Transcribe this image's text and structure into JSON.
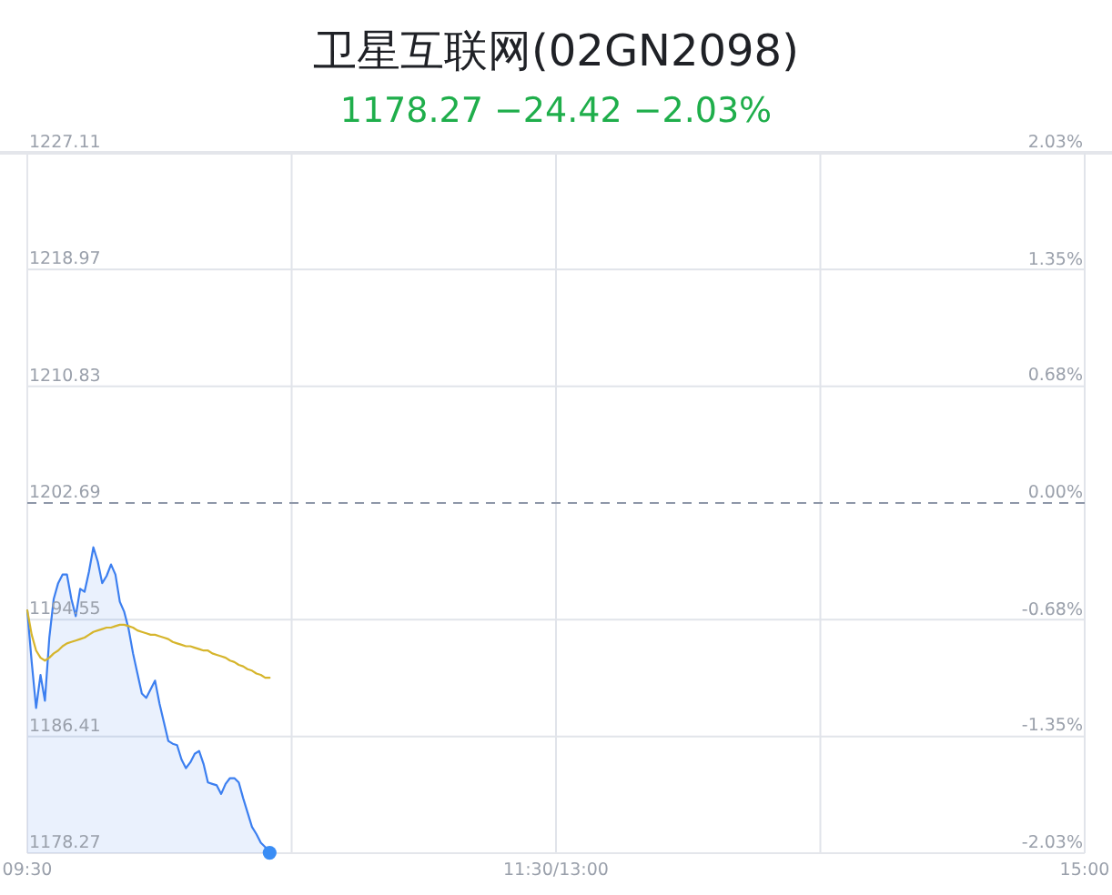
{
  "chart_data": {
    "type": "area",
    "title": "卫星互联网(02GN2098)",
    "subtitle": "1178.27 −24.42 −2.03%",
    "categories": [
      "09:30",
      null,
      null,
      null,
      null,
      null,
      null,
      null,
      null,
      null,
      null,
      null,
      null,
      null,
      null,
      null,
      null,
      null,
      null,
      null,
      null,
      null,
      null,
      null,
      null,
      null,
      null,
      null,
      null,
      null,
      null,
      null,
      null,
      null,
      null,
      null,
      null,
      null,
      null,
      null,
      null,
      null,
      null,
      null,
      null,
      null,
      null,
      null,
      null,
      null,
      null,
      null,
      null,
      null,
      null,
      null,
      null,
      null,
      null,
      null,
      null,
      null,
      null,
      null,
      null,
      null,
      null,
      null,
      null,
      null,
      null,
      null,
      null,
      null,
      null,
      null,
      null,
      null,
      null,
      null,
      null,
      null,
      null,
      null,
      null,
      null,
      null,
      null,
      null,
      null,
      null,
      null,
      null,
      null,
      null,
      null,
      null,
      null,
      null,
      null,
      null,
      null,
      null,
      null,
      null,
      null,
      null,
      null,
      null,
      null,
      null,
      null,
      null,
      null,
      null,
      null,
      null,
      null,
      null,
      null,
      "11:30/13:00",
      null,
      null,
      null,
      null,
      null,
      null,
      null,
      null,
      null,
      null,
      null,
      null,
      null,
      null,
      null,
      null,
      null,
      null,
      null,
      null,
      null,
      null,
      null,
      null,
      null,
      null,
      null,
      null,
      null,
      null,
      null,
      null,
      null,
      null,
      null,
      null,
      null,
      null,
      null,
      null,
      null,
      null,
      null,
      null,
      null,
      null,
      null,
      null,
      null,
      null,
      null,
      null,
      null,
      null,
      null,
      null,
      null,
      null,
      null,
      null,
      null,
      null,
      null,
      null,
      null,
      null,
      null,
      null,
      null,
      null,
      null,
      null,
      null,
      null,
      null,
      null,
      null,
      null,
      null,
      null,
      null,
      null,
      null,
      null,
      null,
      null,
      null,
      null,
      null,
      null,
      null,
      null,
      null,
      null,
      null,
      null,
      null,
      null,
      null,
      null,
      null,
      null,
      null,
      null,
      null,
      null,
      null,
      null,
      null,
      null,
      null,
      null,
      null,
      null,
      null,
      null,
      null,
      null,
      null,
      "15:00"
    ],
    "ylim": [
      1178.27,
      1227.11
    ],
    "yticks": [
      1178.27,
      1186.41,
      1194.55,
      1202.69,
      1210.83,
      1218.97,
      1227.11
    ],
    "y2lim": [
      -2.03,
      2.03
    ],
    "y2ticks": [
      {
        "value": -2.03,
        "label": "-2.03%"
      },
      {
        "value": -1.35,
        "label": "-1.35%"
      },
      {
        "value": -0.68,
        "label": "-0.68%"
      },
      {
        "value": 0,
        "label": "0.00%"
      },
      {
        "value": 0.68,
        "label": "0.68%"
      },
      {
        "value": 1.35,
        "label": "1.35%"
      },
      {
        "value": 2.03,
        "label": "2.03%"
      }
    ],
    "grid": true,
    "ref_lines": [
      {
        "axis": "y",
        "value": 1202.69,
        "line_style": "dashed",
        "color": "#8e97a8"
      }
    ],
    "series": [
      {
        "color": "#3c7ff0",
        "values": [
          1195.2,
          1191.6,
          1188.4,
          1190.7,
          1188.9,
          1193.3,
          1196.0,
          1197.1,
          1197.7,
          1197.7,
          1196.0,
          1194.8,
          1196.7,
          1196.5,
          1197.9,
          1199.6,
          1198.6,
          1197.1,
          1197.6,
          1198.4,
          1197.7,
          1195.8,
          1195.1,
          1193.9,
          1192.2,
          1190.8,
          1189.4,
          1189.1,
          1189.7,
          1190.3,
          1188.7,
          1187.4,
          1186.1,
          1185.9,
          1185.8,
          1184.8,
          1184.2,
          1184.6,
          1185.2,
          1185.4,
          1184.5,
          1183.2,
          1183.1,
          1183.0,
          1182.4,
          1183.1,
          1183.5,
          1183.5,
          1183.2,
          1182.1,
          1181.1,
          1180.1,
          1179.6,
          1179.0,
          1178.7,
          1178.3,
          null,
          null,
          null,
          null,
          null,
          null,
          null,
          null,
          null,
          null,
          null,
          null,
          null,
          null,
          null,
          null,
          null,
          null,
          null,
          null,
          null,
          null,
          null,
          null,
          null,
          null,
          null,
          null,
          null,
          null,
          null,
          null,
          null,
          null,
          null,
          null,
          null,
          null,
          null,
          null,
          null,
          null,
          null,
          null,
          null,
          null,
          null,
          null,
          null,
          null,
          null,
          null,
          null,
          null,
          null,
          null,
          null,
          null,
          null,
          null,
          null,
          null,
          null,
          null,
          null,
          null,
          null,
          null,
          null,
          null,
          null,
          null,
          null,
          null,
          null,
          null,
          null,
          null,
          null,
          null,
          null,
          null,
          null,
          null,
          null,
          null,
          null,
          null,
          null,
          null,
          null,
          null,
          null,
          null,
          null,
          null,
          null,
          null,
          null,
          null,
          null,
          null,
          null,
          null,
          null,
          null,
          null,
          null,
          null,
          null,
          null,
          null,
          null,
          null,
          null,
          null,
          null,
          null,
          null,
          null,
          null,
          null,
          null,
          null,
          null,
          null,
          null,
          null,
          null,
          null,
          null,
          null,
          null,
          null,
          null,
          null,
          null,
          null,
          null,
          null,
          null,
          null,
          null,
          null,
          null,
          null,
          null,
          null,
          null,
          null,
          null,
          null,
          null,
          null,
          null,
          null,
          null,
          null,
          null,
          null,
          null,
          null,
          null,
          null,
          null,
          null,
          null,
          null,
          null,
          null,
          null,
          null,
          null,
          null,
          null,
          null,
          null,
          null,
          null,
          null,
          null,
          null,
          null,
          null,
          null
        ]
      },
      {
        "type": "line",
        "color": "#d6b52c",
        "values": [
          1195.2,
          1193.5,
          1192.4,
          1191.9,
          1191.7,
          1191.9,
          1192.2,
          1192.4,
          1192.7,
          1192.9,
          1193.0,
          1193.1,
          1193.2,
          1193.3,
          1193.5,
          1193.7,
          1193.8,
          1193.9,
          1194.0,
          1194.0,
          1194.1,
          1194.2,
          1194.2,
          1194.1,
          1194.0,
          1193.8,
          1193.7,
          1193.6,
          1193.5,
          1193.5,
          1193.4,
          1193.3,
          1193.2,
          1193.0,
          1192.9,
          1192.8,
          1192.7,
          1192.7,
          1192.6,
          1192.5,
          1192.4,
          1192.4,
          1192.2,
          1192.1,
          1192.0,
          1191.9,
          1191.7,
          1191.6,
          1191.4,
          1191.3,
          1191.1,
          1191.0,
          1190.8,
          1190.7,
          1190.5,
          1190.5,
          null,
          null,
          null,
          null,
          null,
          null,
          null,
          null,
          null,
          null,
          null,
          null,
          null,
          null,
          null,
          null,
          null,
          null,
          null,
          null,
          null,
          null,
          null,
          null,
          null,
          null,
          null,
          null,
          null,
          null,
          null,
          null,
          null,
          null,
          null,
          null,
          null,
          null,
          null,
          null,
          null,
          null,
          null,
          null,
          null,
          null,
          null,
          null,
          null,
          null,
          null,
          null,
          null,
          null,
          null,
          null,
          null,
          null,
          null,
          null,
          null,
          null,
          null,
          null,
          null,
          null,
          null,
          null,
          null,
          null,
          null,
          null,
          null,
          null,
          null,
          null,
          null,
          null,
          null,
          null,
          null,
          null,
          null,
          null,
          null,
          null,
          null,
          null,
          null,
          null,
          null,
          null,
          null,
          null,
          null,
          null,
          null,
          null,
          null,
          null,
          null,
          null,
          null,
          null,
          null,
          null,
          null,
          null,
          null,
          null,
          null,
          null,
          null,
          null,
          null,
          null,
          null,
          null,
          null,
          null,
          null,
          null,
          null,
          null,
          null,
          null,
          null,
          null,
          null,
          null,
          null,
          null,
          null,
          null,
          null,
          null,
          null,
          null,
          null,
          null,
          null,
          null,
          null,
          null,
          null,
          null,
          null,
          null,
          null,
          null,
          null,
          null,
          null,
          null,
          null,
          null,
          null,
          null,
          null,
          null,
          null,
          null,
          null,
          null,
          null,
          null,
          null,
          null,
          null,
          null,
          null,
          null,
          null,
          null,
          null,
          null,
          null,
          null,
          null,
          null,
          null,
          null,
          null,
          null,
          null
        ]
      },
      {
        "type": "scatter",
        "color": "#3a8df5",
        "marker": "circle",
        "values": [
          null,
          null,
          null,
          null,
          null,
          null,
          null,
          null,
          null,
          null,
          null,
          null,
          null,
          null,
          null,
          null,
          null,
          null,
          null,
          null,
          null,
          null,
          null,
          null,
          null,
          null,
          null,
          null,
          null,
          null,
          null,
          null,
          null,
          null,
          null,
          null,
          null,
          null,
          null,
          null,
          null,
          null,
          null,
          null,
          null,
          null,
          null,
          null,
          null,
          null,
          null,
          null,
          null,
          null,
          null,
          1178.3,
          null,
          null,
          null,
          null,
          null,
          null,
          null,
          null,
          null,
          null,
          null,
          null,
          null,
          null,
          null,
          null,
          null,
          null,
          null,
          null,
          null,
          null,
          null,
          null,
          null,
          null,
          null,
          null,
          null,
          null,
          null,
          null,
          null,
          null,
          null,
          null,
          null,
          null,
          null,
          null,
          null,
          null,
          null,
          null,
          null,
          null,
          null,
          null,
          null,
          null,
          null,
          null,
          null,
          null,
          null,
          null,
          null,
          null,
          null,
          null,
          null,
          null,
          null,
          null,
          null,
          null,
          null,
          null,
          null,
          null,
          null,
          null,
          null,
          null,
          null,
          null,
          null,
          null,
          null,
          null,
          null,
          null,
          null,
          null,
          null,
          null,
          null,
          null,
          null,
          null,
          null,
          null,
          null,
          null,
          null,
          null,
          null,
          null,
          null,
          null,
          null,
          null,
          null,
          null,
          null,
          null,
          null,
          null,
          null,
          null,
          null,
          null,
          null,
          null,
          null,
          null,
          null,
          null,
          null,
          null,
          null,
          null,
          null,
          null,
          null,
          null,
          null,
          null,
          null,
          null,
          null,
          null,
          null,
          null,
          null,
          null,
          null,
          null,
          null,
          null,
          null,
          null,
          null,
          null,
          null,
          null,
          null,
          null,
          null,
          null,
          null,
          null,
          null,
          null,
          null,
          null,
          null,
          null,
          null,
          null,
          null,
          null,
          null,
          null,
          null,
          null,
          null,
          null,
          null,
          null,
          null,
          null,
          null,
          null,
          null,
          null,
          null,
          null,
          null,
          null,
          null,
          null,
          null,
          null,
          null
        ]
      }
    ]
  }
}
